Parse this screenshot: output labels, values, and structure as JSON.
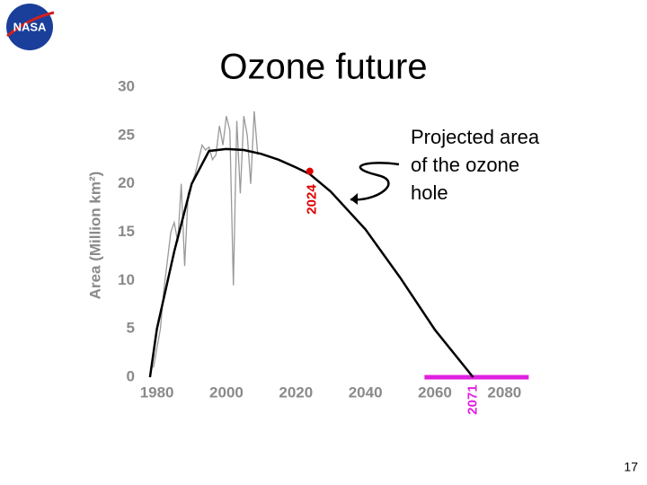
{
  "logo_text": "NASA",
  "page_number": 17,
  "chart_data": {
    "type": "line",
    "title": "Ozone future",
    "annotation": [
      "Projected area",
      "of the ozone",
      "hole"
    ],
    "y_label": "Area (Million km²)",
    "xlim": [
      1977,
      2090
    ],
    "ylim": [
      0,
      30
    ],
    "xticks": [
      1980,
      2000,
      2020,
      2040,
      2060,
      2080
    ],
    "yticks": [
      0,
      5,
      10,
      15,
      20,
      25,
      30
    ],
    "grid": false,
    "series": [
      {
        "color": "#999999",
        "x": [
          1979,
          1980,
          1981,
          1982,
          1983,
          1984,
          1985,
          1986,
          1987,
          1988,
          1989,
          1990,
          1991,
          1992,
          1993,
          1994,
          1995,
          1996,
          1997,
          1998,
          1999,
          2000,
          2001,
          2002,
          2003,
          2004,
          2005,
          2006,
          2007,
          2008,
          2009
        ],
        "values": [
          1,
          3,
          5,
          9,
          12,
          15,
          16,
          14,
          20,
          11.5,
          19,
          20,
          21,
          22.5,
          24,
          23.5,
          23.8,
          22.5,
          23,
          26,
          24,
          27,
          25.5,
          9.5,
          26.5,
          19,
          27,
          25,
          20,
          27.5,
          23
        ]
      },
      {
        "color": "#000000",
        "x": [
          1978,
          1980,
          1985,
          1990,
          1995,
          2000,
          2005,
          2010,
          2015,
          2020,
          2024,
          2030,
          2040,
          2050,
          2060,
          2071
        ],
        "values": [
          0,
          5,
          13,
          20,
          23.4,
          23.6,
          23.5,
          23.1,
          22.5,
          21.7,
          21.0,
          19.2,
          15.3,
          10.3,
          4.9,
          0
        ]
      }
    ],
    "marker": {
      "x": 2024,
      "y": 21.3,
      "color": "#e00000"
    },
    "recovery": {
      "x": 2071,
      "range": [
        2057,
        2087
      ],
      "color": "#e020e0"
    }
  }
}
